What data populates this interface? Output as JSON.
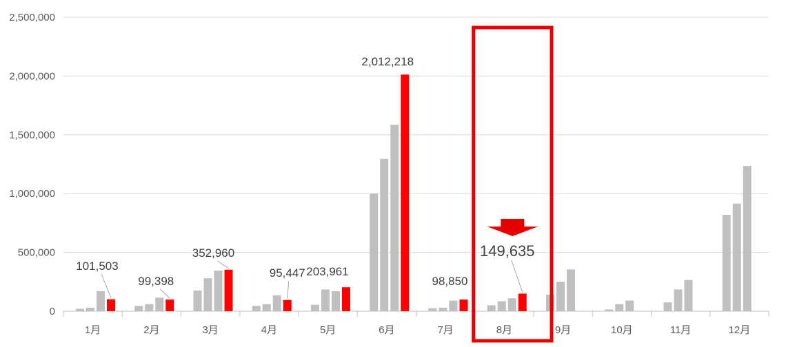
{
  "chart_data": {
    "type": "bar",
    "categories": [
      "1月",
      "2月",
      "3月",
      "4月",
      "5月",
      "6月",
      "7月",
      "8月",
      "9月",
      "10月",
      "11月",
      "12月"
    ],
    "ylim": [
      0,
      2500000
    ],
    "y_ticks": [
      "0",
      "500,000",
      "1,000,000",
      "1,500,000",
      "2,000,000",
      "2,500,000"
    ],
    "grid": true,
    "colors": {
      "history": "#bfbfbf",
      "current": "#ff0000",
      "highlight": "#e60000",
      "gridline": "#d9d9d9",
      "axis": "#bfbfbf",
      "label": "#404040"
    },
    "series": [
      {
        "values": [
          20000,
          45000,
          175000,
          45000,
          55000,
          1000000,
          25000,
          50000,
          140000,
          15000,
          75000,
          820000
        ]
      },
      {
        "values": [
          30000,
          60000,
          280000,
          60000,
          185000,
          1295000,
          30000,
          85000,
          250000,
          60000,
          185000,
          915000
        ]
      },
      {
        "values": [
          170000,
          115000,
          345000,
          135000,
          170000,
          1585000,
          90000,
          110000,
          355000,
          90000,
          265000,
          1235000
        ]
      },
      {
        "values": [
          101503,
          99398,
          352960,
          95447,
          203961,
          2012218,
          98850,
          149635,
          null,
          null,
          null,
          null
        ]
      }
    ],
    "data_labels": [
      "101,503",
      "99,398",
      "352,960",
      "95,447",
      "203,961",
      "2,012,218",
      "98,850",
      "149,635"
    ],
    "highlight": {
      "category": "8月",
      "icon": "down-arrow-icon"
    }
  }
}
